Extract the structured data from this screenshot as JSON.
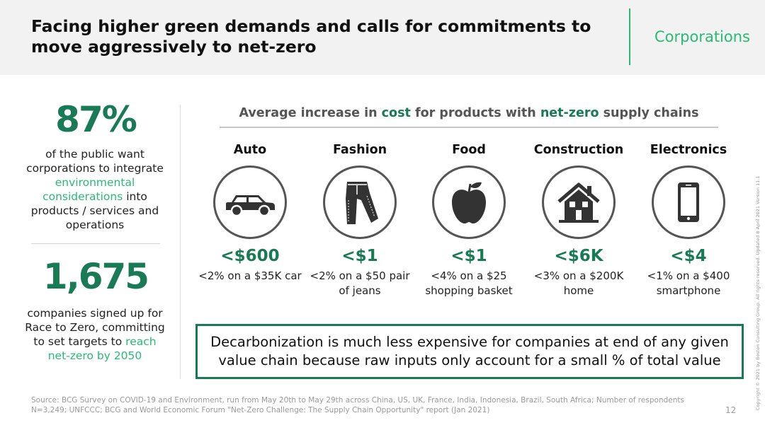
{
  "header": {
    "title": "Facing higher green demands and calls for commitments to move aggressively to net-zero",
    "section": "Corporations"
  },
  "stats": [
    {
      "value": "87%",
      "desc_pre": "of the public want corporations to integrate ",
      "desc_highlight": "environmental considerations",
      "desc_post": " into products / services and operations"
    },
    {
      "value": "1,675",
      "desc_pre": "companies signed up for Race to Zero, committing to set targets to ",
      "desc_highlight": "reach net-zero by 2050",
      "desc_post": ""
    }
  ],
  "average": {
    "part1": "Average increase in ",
    "accent1": "cost",
    "part2": " for products with ",
    "accent2": "net-zero",
    "part3": " supply chains"
  },
  "categories": [
    {
      "name": "Auto",
      "icon": "car-icon",
      "value": "<$600",
      "note": "<2% on a $35K car"
    },
    {
      "name": "Fashion",
      "icon": "jeans-icon",
      "value": "<$1",
      "note": "<2% on a $50 pair of jeans"
    },
    {
      "name": "Food",
      "icon": "apple-icon",
      "value": "<$1",
      "note": "<4% on a $25 shopping basket"
    },
    {
      "name": "Construction",
      "icon": "house-icon",
      "value": "<$6K",
      "note": "<3% on a $200K home"
    },
    {
      "name": "Electronics",
      "icon": "smartphone-icon",
      "value": "<$4",
      "note": "<1% on a $400 smartphone"
    }
  ],
  "callout": "Decarbonization is much less expensive for companies at end of any given value chain because raw inputs only account for a small % of total value",
  "source": "Source: BCG Survey on COVID-19 and Environment, run from May 20th to May 29th across China, US, UK, France, India, Indonesia, Brazil, South Africa; Number of respondents N=3,249; UNFCCC; BCG and World Economic Forum \"Net-Zero Challenge: The Supply Chain Opportunity\" report (Jan 2021)",
  "page_number": "12",
  "copyright": "Copyright © 2021 by Boston Consulting Group. All rights reserved. Updated 8 April 2021 Version 11.1",
  "colors": {
    "accent": "#29ba74",
    "dark_green": "#197a56"
  }
}
